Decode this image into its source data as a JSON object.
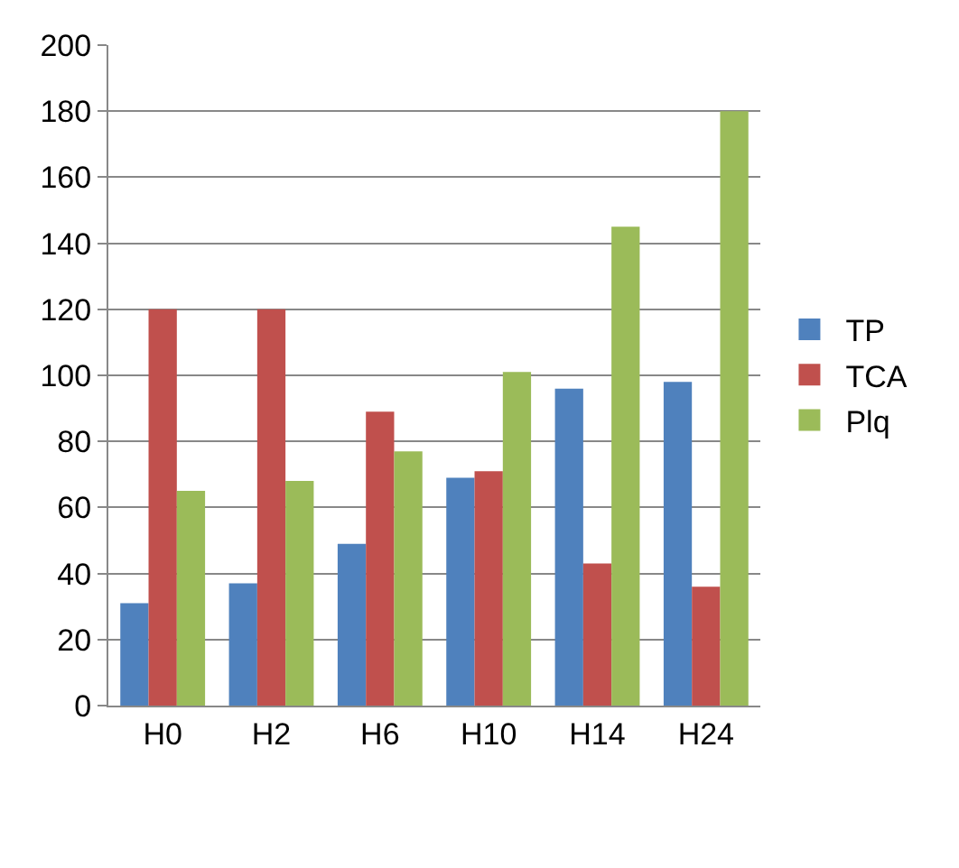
{
  "chart_data": {
    "type": "bar",
    "categories": [
      "H0",
      "H2",
      "H6",
      "H10",
      "H14",
      "H24"
    ],
    "series": [
      {
        "name": "TP",
        "color": "#4f81bd",
        "values": [
          31,
          37,
          49,
          69,
          96,
          98
        ]
      },
      {
        "name": "TCA",
        "color": "#c0504d",
        "values": [
          120,
          120,
          89,
          71,
          43,
          36
        ]
      },
      {
        "name": "Plq",
        "color": "#9bbb59",
        "values": [
          65,
          68,
          77,
          101,
          145,
          180
        ]
      }
    ],
    "ylim": [
      0,
      200
    ],
    "yticks": [
      0,
      20,
      40,
      60,
      80,
      100,
      120,
      140,
      160,
      180,
      200
    ],
    "grid": "y",
    "legend": "right"
  }
}
